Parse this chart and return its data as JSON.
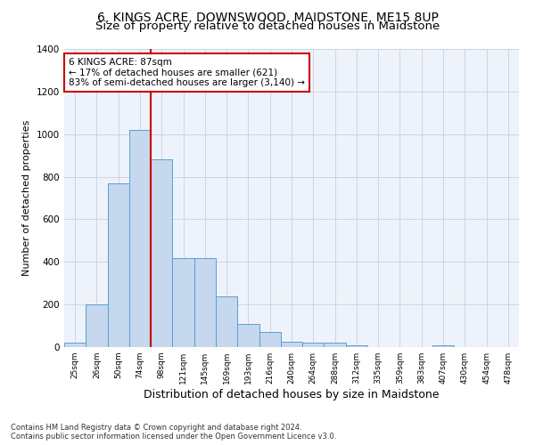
{
  "title": "6, KINGS ACRE, DOWNSWOOD, MAIDSTONE, ME15 8UP",
  "subtitle": "Size of property relative to detached houses in Maidstone",
  "xlabel": "Distribution of detached houses by size in Maidstone",
  "ylabel": "Number of detached properties",
  "categories": [
    "25sqm",
    "26sqm",
    "50sqm",
    "74sqm",
    "98sqm",
    "121sqm",
    "145sqm",
    "169sqm",
    "193sqm",
    "216sqm",
    "240sqm",
    "264sqm",
    "288sqm",
    "312sqm",
    "335sqm",
    "359sqm",
    "383sqm",
    "407sqm",
    "430sqm",
    "454sqm",
    "478sqm"
  ],
  "values": [
    20,
    200,
    770,
    1020,
    880,
    420,
    420,
    240,
    110,
    70,
    25,
    20,
    20,
    10,
    0,
    0,
    0,
    10,
    0,
    0,
    0
  ],
  "bar_color": "#c5d8ed",
  "bar_edge_color": "#5a9fd4",
  "property_line_x": 3.5,
  "annotation_text": "6 KINGS ACRE: 87sqm\n← 17% of detached houses are smaller (621)\n83% of semi-detached houses are larger (3,140) →",
  "annotation_box_color": "#ffffff",
  "annotation_box_edge_color": "#cc0000",
  "vertical_line_color": "#cc0000",
  "ylim": [
    0,
    1400
  ],
  "yticks": [
    0,
    200,
    400,
    600,
    800,
    1000,
    1200,
    1400
  ],
  "footnote": "Contains HM Land Registry data © Crown copyright and database right 2024.\nContains public sector information licensed under the Open Government Licence v3.0.",
  "bg_color": "#eef2fa",
  "title_fontsize": 10,
  "subtitle_fontsize": 9.5,
  "xlabel_fontsize": 9,
  "ylabel_fontsize": 8
}
